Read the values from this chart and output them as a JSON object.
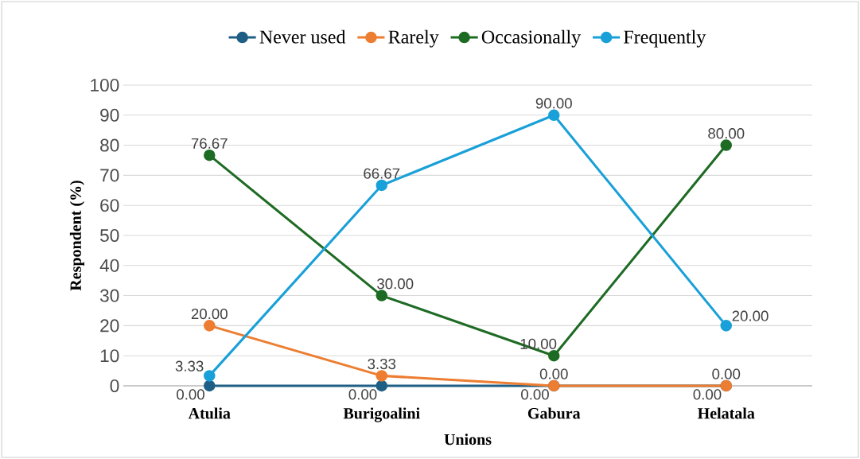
{
  "chart_data": {
    "type": "line",
    "xlabel": "Unions",
    "ylabel": "Respondent (%)",
    "categories": [
      "Atulia",
      "Burigoalini",
      "Gabura",
      "Helatala"
    ],
    "series": [
      {
        "name": "Never used",
        "color": "#1f5f85",
        "values": [
          0,
          0,
          0,
          0
        ],
        "value_labels": [
          "0.00",
          "0.00",
          "0.00",
          "0.00"
        ]
      },
      {
        "name": "Rarely",
        "color": "#ed7d31",
        "values": [
          20,
          3.33,
          0,
          0
        ],
        "value_labels": [
          "20.00",
          "3.33",
          "0.00",
          "0.00"
        ]
      },
      {
        "name": "Occasionally",
        "color": "#1e6b24",
        "values": [
          76.67,
          30,
          10,
          80
        ],
        "value_labels": [
          "76.67",
          "30.00",
          "10.00",
          "80.00"
        ]
      },
      {
        "name": "Frequently",
        "color": "#1aa0d8",
        "values": [
          3.33,
          66.67,
          90,
          20
        ],
        "value_labels": [
          "3.33",
          "66.67",
          "90.00",
          "20.00"
        ]
      }
    ],
    "ylim": [
      0,
      100
    ],
    "yticks": [
      0,
      10,
      20,
      30,
      40,
      50,
      60,
      70,
      80,
      90,
      100
    ],
    "grid": "y",
    "legend": "top",
    "marker": "circle"
  }
}
